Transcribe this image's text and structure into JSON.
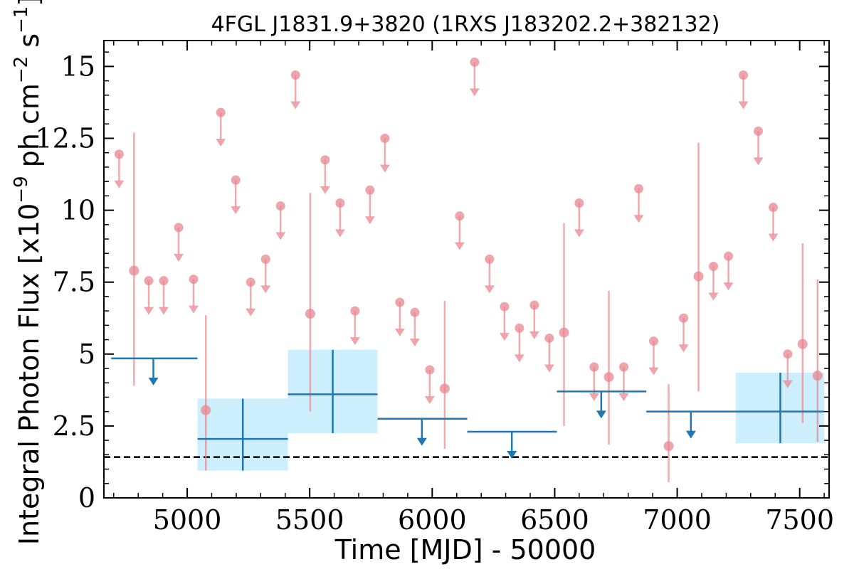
{
  "chart_data": {
    "type": "scatter",
    "title": "4FGL J1831.9+3820 (1RXS J183202.2+382132)",
    "xlabel": "Time [MJD] - 50000",
    "ylabel": "Integral Photon Flux [x10",
    "ylabel_exp": "−9",
    "ylabel_mid": " ph cm",
    "ylabel_exp2": "−2",
    "ylabel_mid2": " s",
    "ylabel_exp3": "−1",
    "ylabel_end": "]",
    "xlim": [
      4660,
      7620
    ],
    "ylim": [
      0,
      15.9
    ],
    "xticks": [
      5000,
      5500,
      6000,
      6500,
      7000,
      7500
    ],
    "xtick_labels": [
      "5000",
      "5500",
      "6000",
      "6500",
      "7000",
      "7500"
    ],
    "yticks": [
      0,
      2.5,
      5,
      7.5,
      10,
      12.5,
      15
    ],
    "ytick_labels": [
      "0",
      "2.5",
      "5",
      "7.5",
      "10",
      "12.5",
      "15"
    ],
    "reference_level": 1.42,
    "colors": {
      "fine_bins": "#e8868d",
      "coarse_bins": "#1f77b4",
      "coarse_band": "#cdeefc",
      "reference_line": "#000000"
    },
    "fine_bins": {
      "detections": [
        {
          "x": 4783,
          "y": 7.9,
          "lo": 3.9,
          "hi": 12.7
        },
        {
          "x": 5076,
          "y": 3.05,
          "lo": 0.95,
          "hi": 6.35
        },
        {
          "x": 5502,
          "y": 6.4,
          "lo": 3.0,
          "hi": 10.6
        },
        {
          "x": 6051,
          "y": 3.8,
          "lo": 1.7,
          "hi": 6.85
        },
        {
          "x": 6538,
          "y": 5.75,
          "lo": 2.5,
          "hi": 9.55
        },
        {
          "x": 6721,
          "y": 4.2,
          "lo": 1.85,
          "hi": 7.2
        },
        {
          "x": 6965,
          "y": 1.8,
          "lo": 0.55,
          "hi": 3.95
        },
        {
          "x": 7087,
          "y": 7.7,
          "lo": 3.7,
          "hi": 12.35
        },
        {
          "x": 7512,
          "y": 5.35,
          "lo": 2.6,
          "hi": 8.85
        },
        {
          "x": 7573,
          "y": 4.25,
          "lo": 1.95,
          "hi": 7.6
        }
      ],
      "upper_limits": [
        {
          "x": 4722,
          "y": 11.95
        },
        {
          "x": 4843,
          "y": 7.55
        },
        {
          "x": 4904,
          "y": 7.55
        },
        {
          "x": 4965,
          "y": 9.4
        },
        {
          "x": 5026,
          "y": 7.6
        },
        {
          "x": 5137,
          "y": 13.4
        },
        {
          "x": 5198,
          "y": 11.05
        },
        {
          "x": 5259,
          "y": 7.5
        },
        {
          "x": 5320,
          "y": 8.3
        },
        {
          "x": 5381,
          "y": 10.15
        },
        {
          "x": 5442,
          "y": 14.7
        },
        {
          "x": 5563,
          "y": 11.75
        },
        {
          "x": 5624,
          "y": 10.25
        },
        {
          "x": 5685,
          "y": 6.5
        },
        {
          "x": 5746,
          "y": 10.7
        },
        {
          "x": 5807,
          "y": 12.5
        },
        {
          "x": 5868,
          "y": 6.8
        },
        {
          "x": 5929,
          "y": 6.45
        },
        {
          "x": 5990,
          "y": 4.45
        },
        {
          "x": 6112,
          "y": 9.8
        },
        {
          "x": 6173,
          "y": 15.15
        },
        {
          "x": 6234,
          "y": 8.3
        },
        {
          "x": 6295,
          "y": 6.65
        },
        {
          "x": 6356,
          "y": 5.9
        },
        {
          "x": 6417,
          "y": 6.7
        },
        {
          "x": 6478,
          "y": 5.55
        },
        {
          "x": 6600,
          "y": 10.25
        },
        {
          "x": 6661,
          "y": 4.55
        },
        {
          "x": 6782,
          "y": 4.55
        },
        {
          "x": 6843,
          "y": 10.75
        },
        {
          "x": 6904,
          "y": 5.45
        },
        {
          "x": 7026,
          "y": 6.25
        },
        {
          "x": 7148,
          "y": 8.05
        },
        {
          "x": 7209,
          "y": 8.4
        },
        {
          "x": 7270,
          "y": 14.7
        },
        {
          "x": 7331,
          "y": 12.75
        },
        {
          "x": 7392,
          "y": 10.1
        },
        {
          "x": 7451,
          "y": 5.0
        }
      ]
    },
    "coarse_bins": {
      "detections": [
        {
          "x": 5227,
          "x0": 5042,
          "x1": 5411,
          "y": 2.05,
          "lo": 0.95,
          "hi": 3.45
        },
        {
          "x": 5594,
          "x0": 5411,
          "x1": 5777,
          "y": 3.6,
          "lo": 2.25,
          "hi": 5.15
        },
        {
          "x": 7421,
          "x0": 7239,
          "x1": 7600,
          "y": 3.0,
          "lo": 1.9,
          "hi": 4.35
        }
      ],
      "upper_limits": [
        {
          "x": 4862,
          "x0": 4690,
          "x1": 5042,
          "y": 4.85
        },
        {
          "x": 5958,
          "x0": 5777,
          "x1": 6143,
          "y": 2.75
        },
        {
          "x": 6325,
          "x0": 6143,
          "x1": 6509,
          "y": 2.3
        },
        {
          "x": 6690,
          "x0": 6509,
          "x1": 6874,
          "y": 3.7
        },
        {
          "x": 7056,
          "x0": 6874,
          "x1": 7239,
          "y": 3.0
        }
      ]
    }
  }
}
